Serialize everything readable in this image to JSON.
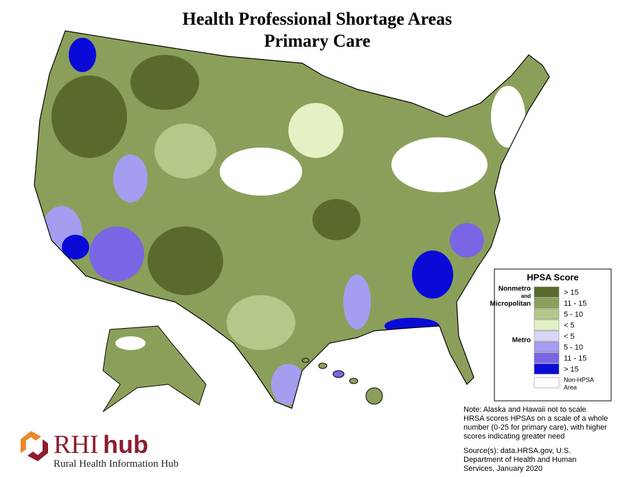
{
  "title": [
    "Health Professional Shortage Areas",
    "Primary Care"
  ],
  "legend": {
    "title": "HPSA Score",
    "groups": [
      {
        "label": [
          "Nonmetro",
          "and",
          "Micropolitan"
        ],
        "items": [
          {
            "label": "> 15",
            "color": "#5a6a2c"
          },
          {
            "label": "11 - 15",
            "color": "#8aa05a"
          },
          {
            "label": "5 - 10",
            "color": "#b2c98a"
          },
          {
            "label": "< 5",
            "color": "#e3f1c4"
          }
        ]
      },
      {
        "label": [
          "Metro"
        ],
        "items": [
          {
            "label": "< 5",
            "color": "#d8d6f4"
          },
          {
            "label": "5 - 10",
            "color": "#a59df0"
          },
          {
            "label": "11 - 15",
            "color": "#7a66e4"
          },
          {
            "label": "> 15",
            "color": "#0a0ad8"
          }
        ]
      }
    ],
    "non_hpsa": {
      "label": [
        "Non-HPSA",
        "Area"
      ],
      "color": "#ffffff"
    }
  },
  "note": [
    "Note: Alaska and Hawaii not to scale",
    "HRSA scores HPSAs on a scale of a whole",
    "number (0-25 for primary care), with higher",
    "scores indicating greater need"
  ],
  "source": [
    "Source(s): data.HRSA.gov, U.S.",
    "Department of Health and Human",
    "Services, January 2020"
  ],
  "logo": {
    "brand_a": "RHI",
    "brand_b": "hub",
    "tagline": "Rural Health Information Hub"
  }
}
